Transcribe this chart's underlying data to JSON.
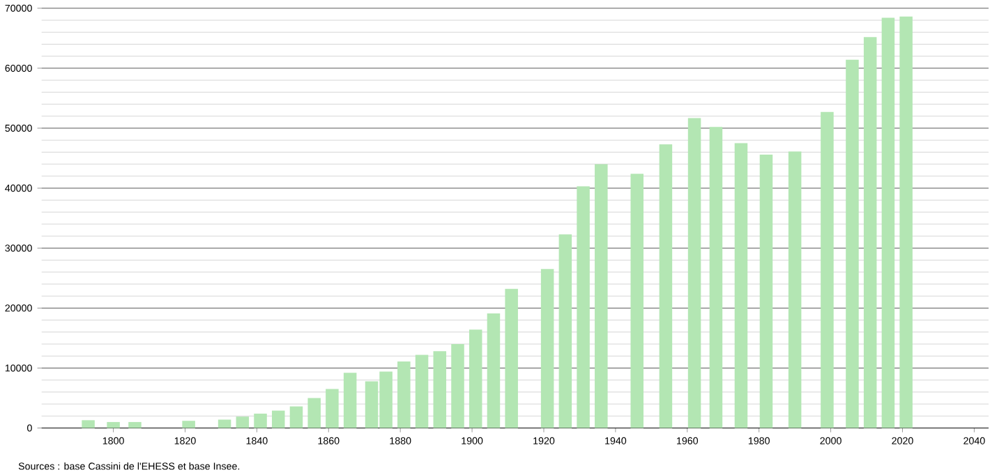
{
  "chart_data": {
    "type": "bar",
    "color": "#b3e6b3",
    "x": [
      1793,
      1800,
      1806,
      1821,
      1831,
      1836,
      1841,
      1846,
      1851,
      1856,
      1861,
      1866,
      1872,
      1876,
      1881,
      1886,
      1891,
      1896,
      1901,
      1906,
      1911,
      1921,
      1926,
      1931,
      1936,
      1946,
      1954,
      1962,
      1968,
      1975,
      1982,
      1990,
      1999,
      2006,
      2011,
      2016,
      2021
    ],
    "values": [
      1300,
      1000,
      1000,
      1200,
      1400,
      1900,
      2400,
      2900,
      3600,
      5000,
      6500,
      9200,
      7800,
      9400,
      11100,
      12200,
      12800,
      14000,
      16400,
      19100,
      23200,
      26500,
      32300,
      40300,
      44000,
      42400,
      47300,
      51700,
      50200,
      47500,
      45600,
      46100,
      52700,
      61400,
      65200,
      68400,
      68600
    ],
    "xlim": [
      1780,
      2044
    ],
    "ylim": [
      0,
      70000
    ],
    "xticks": [
      1800,
      1820,
      1840,
      1860,
      1880,
      1900,
      1920,
      1940,
      1960,
      1980,
      2000,
      2020,
      2040
    ],
    "yticks": [
      0,
      10000,
      20000,
      30000,
      40000,
      50000,
      60000,
      70000
    ],
    "grid": "y",
    "annotations": [
      "Sources : base Cassini de l'EHESS et base Insee."
    ]
  }
}
